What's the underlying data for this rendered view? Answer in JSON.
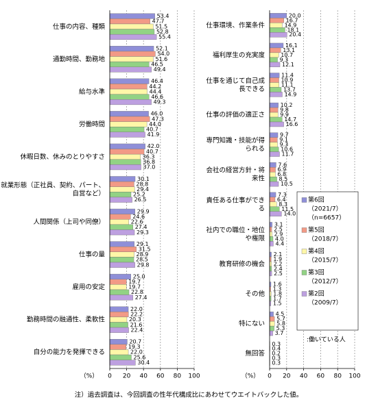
{
  "charts": [
    {
      "type": "hbar",
      "xlabel": "（%）",
      "xlim": [
        0,
        100
      ],
      "xticks": [
        0,
        20,
        40,
        60,
        80,
        100
      ],
      "grid": true,
      "categories": [
        "仕事の内容、種類",
        "通勤時間、勤務地",
        "給与水準",
        "労働時間",
        "休暇日数、休みのとりやすさ",
        "就業形態（正社員、契約、パート、自営など）",
        "人間関係（上司や同僚）",
        "仕事の量",
        "雇用の安定",
        "勤務時間の融通性、柔軟性",
        "自分の能力を発揮できる"
      ],
      "series": [
        {
          "values": [
            53.4,
            52.1,
            46.4,
            46.0,
            42.0,
            30.1,
            29.9,
            29.1,
            25.0,
            22.0,
            20.7
          ],
          "value_labels": [
            "53.4",
            "52.1",
            "46.4",
            "46.0",
            "42.0",
            "30.1",
            "29.9",
            "29.1",
            "25.0",
            "22.0",
            "20.7"
          ]
        },
        {
          "values": [
            47.7,
            54.0,
            44.2,
            47.3,
            40.7,
            28.8,
            24.6,
            31.5,
            19.7,
            22.2,
            19.3
          ],
          "value_labels": [
            "47.7",
            "54.0",
            "44.2",
            "47.3",
            "40.7",
            "28.8",
            "24.6",
            "31.5",
            "19.7",
            "22.2",
            "19.3"
          ]
        },
        {
          "values": [
            51.5,
            51.6,
            44.4,
            44.0,
            36.3,
            29.4,
            22.6,
            28.9,
            19.7,
            20.3,
            22.0
          ],
          "value_labels": [
            "51.5",
            "51.6",
            "44.4",
            "44.0",
            "36.3",
            "29.4",
            "22.6",
            "28.9",
            "19.7",
            "20.3",
            "22.0"
          ]
        },
        {
          "values": [
            52.8,
            46.5,
            46.6,
            40.7,
            36.8,
            25.2,
            27.4,
            28.5,
            22.8,
            21.6,
            25.6
          ],
          "value_labels": [
            "52.8",
            "46.5",
            "46.6",
            "40.7",
            "36.8",
            "25.2",
            "27.4",
            "28.5",
            "22.8",
            "21.6",
            "25.6"
          ]
        },
        {
          "values": [
            55.4,
            49.4,
            49.3,
            41.9,
            37.0,
            26.5,
            29.3,
            29.8,
            27.4,
            22.4,
            30.4
          ],
          "value_labels": [
            "55.4",
            "49.4",
            "49.3",
            "41.9",
            "37.0",
            "26.5",
            "29.3",
            "29.8",
            "27.4",
            "22.4",
            "30.4"
          ]
        }
      ]
    },
    {
      "type": "hbar",
      "xlabel": "（%）",
      "xlim": [
        0,
        100
      ],
      "xticks": [
        0,
        20,
        40,
        60,
        80,
        100
      ],
      "grid": true,
      "categories": [
        "仕事環境、作業条件",
        "福利厚生の充実度",
        "仕事を通じて自己成長できる",
        "仕事の評価の適正さ",
        "専門知識・技能が得られる",
        "会社の経営方針・将来性",
        "責任ある仕事ができる",
        "社内での職位・地位や権限",
        "教育研修の機会",
        "その他",
        "特にない",
        "無回答"
      ],
      "series": [
        {
          "values": [
            20.0,
            16.1,
            11.4,
            10.2,
            9.7,
            7.6,
            7.3,
            3.1,
            2.1,
            1.6,
            4.5,
            0.3
          ],
          "value_labels": [
            "20.0",
            "16.1",
            "11.4",
            "10.2",
            "9.7",
            "7.6",
            "7.3",
            "3.1",
            "2.1",
            "1.6",
            "4.5",
            "0.3"
          ]
        },
        {
          "values": [
            16.7,
            13.1,
            10.9,
            9.8,
            9.1,
            6.9,
            6.4,
            2.5,
            1.9,
            1.3,
            5.7,
            0.4
          ],
          "value_labels": [
            "16.7",
            "13.1",
            "10.9",
            "9.8",
            "9.1",
            "6.9",
            "6.4",
            "2.5",
            "1.9",
            "1.3",
            "5.7",
            "0.4"
          ]
        },
        {
          "values": [
            14.9,
            10.7,
            11.1,
            9.9,
            9.3,
            6.8,
            8.3,
            2.9,
            2.2,
            1.8,
            5.8,
            0.2
          ],
          "value_labels": [
            "14.9",
            "10.7",
            "11.1",
            "9.9",
            "9.3",
            "6.8",
            "8.3",
            "2.9",
            "2.2",
            "1.8",
            "5.8",
            "0.2"
          ]
        },
        {
          "values": [
            18.1,
            9.3,
            13.7,
            14.7,
            10.6,
            8.5,
            11.5,
            4.0,
            2.4,
            1.7,
            5.3,
            0.3
          ],
          "value_labels": [
            "18.1",
            "9.3",
            "13.7",
            "14.7",
            "10.6",
            "8.5",
            "11.5",
            "4.0",
            "2.4",
            "1.7",
            "5.3",
            "0.3"
          ]
        },
        {
          "values": [
            20.4,
            12.1,
            14.9,
            16.6,
            11.7,
            10.5,
            14.0,
            4.4,
            2.5,
            1.5,
            3.7,
            0.3
          ],
          "value_labels": [
            "20.4",
            "12.1",
            "14.9",
            "16.6",
            "11.7",
            "10.5",
            "14.0",
            "4.4",
            "2.5",
            "1.5",
            "3.7",
            "0.3"
          ]
        }
      ]
    }
  ],
  "legend": {
    "items": [
      {
        "name": "第6回",
        "color": "#8f8fd8",
        "notes": [
          "（2021/7）",
          "（n=6657）"
        ]
      },
      {
        "name": "第5回",
        "color": "#f29a86",
        "notes": [
          "（2018/7）"
        ]
      },
      {
        "name": "第4回",
        "color": "#fff7a8",
        "notes": [
          "（2015/7）"
        ]
      },
      {
        "name": "第3回",
        "color": "#92d284",
        "notes": [
          "（2012/7）"
        ]
      },
      {
        "name": "第2回",
        "color": "#bda0e0",
        "notes": [
          "（2009/7）"
        ]
      }
    ],
    "note": ":働いている人"
  },
  "footnote": "注）過去調査は、今回調査の性年代構成比にあわせてウエイトバックした値。"
}
